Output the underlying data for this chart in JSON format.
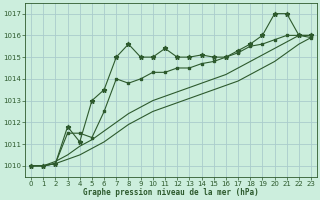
{
  "title": "Graphe pression niveau de la mer (hPa)",
  "background_color": "#cceedd",
  "grid_color": "#aacccc",
  "line_color": "#2d5a2d",
  "ylim": [
    1009.5,
    1017.5
  ],
  "xlim": [
    -0.5,
    23.5
  ],
  "yticks": [
    1010,
    1011,
    1012,
    1013,
    1014,
    1015,
    1016,
    1017
  ],
  "xticks": [
    0,
    1,
    2,
    3,
    4,
    5,
    6,
    7,
    8,
    9,
    10,
    11,
    12,
    13,
    14,
    15,
    16,
    17,
    18,
    19,
    20,
    21,
    22,
    23
  ],
  "series_star_x": [
    0,
    1,
    2,
    3,
    4,
    5,
    6,
    7,
    8,
    9,
    10,
    11,
    12,
    13,
    14,
    15,
    16,
    17,
    18,
    19,
    20,
    21,
    22,
    23
  ],
  "series_star_y": [
    1010.0,
    1010.0,
    1010.1,
    1011.8,
    1011.1,
    1013.0,
    1013.5,
    1015.0,
    1015.6,
    1015.0,
    1015.0,
    1015.4,
    1015.0,
    1015.0,
    1015.1,
    1015.0,
    1015.0,
    1015.3,
    1015.6,
    1016.0,
    1017.0,
    1017.0,
    1016.0,
    1016.0
  ],
  "series_sq_x": [
    0,
    1,
    2,
    3,
    4,
    5,
    6,
    7,
    8,
    9,
    10,
    11,
    12,
    13,
    14,
    15,
    16,
    17,
    18,
    19,
    20,
    21,
    22,
    23
  ],
  "series_sq_y": [
    1010.0,
    1010.0,
    1010.1,
    1011.5,
    1011.5,
    1011.3,
    1012.5,
    1014.0,
    1013.8,
    1014.0,
    1014.3,
    1014.3,
    1014.5,
    1014.5,
    1014.7,
    1014.8,
    1015.0,
    1015.2,
    1015.5,
    1015.6,
    1015.8,
    1016.0,
    1016.0,
    1015.9
  ],
  "series_line1_x": [
    0,
    1,
    2,
    3,
    4,
    5,
    6,
    7,
    8,
    9,
    10,
    11,
    12,
    13,
    14,
    15,
    16,
    17,
    18,
    19,
    20,
    21,
    22,
    23
  ],
  "series_line1_y": [
    1010.0,
    1010.0,
    1010.1,
    1010.3,
    1010.5,
    1010.8,
    1011.1,
    1011.5,
    1011.9,
    1012.2,
    1012.5,
    1012.7,
    1012.9,
    1013.1,
    1013.3,
    1013.5,
    1013.7,
    1013.9,
    1014.2,
    1014.5,
    1014.8,
    1015.2,
    1015.6,
    1015.9
  ],
  "series_line2_x": [
    0,
    1,
    2,
    3,
    4,
    5,
    6,
    7,
    8,
    9,
    10,
    11,
    12,
    13,
    14,
    15,
    16,
    17,
    18,
    19,
    20,
    21,
    22,
    23
  ],
  "series_line2_y": [
    1010.0,
    1010.0,
    1010.2,
    1010.5,
    1010.9,
    1011.2,
    1011.6,
    1012.0,
    1012.4,
    1012.7,
    1013.0,
    1013.2,
    1013.4,
    1013.6,
    1013.8,
    1014.0,
    1014.2,
    1014.5,
    1014.8,
    1015.1,
    1015.4,
    1015.7,
    1016.0,
    1016.0
  ]
}
